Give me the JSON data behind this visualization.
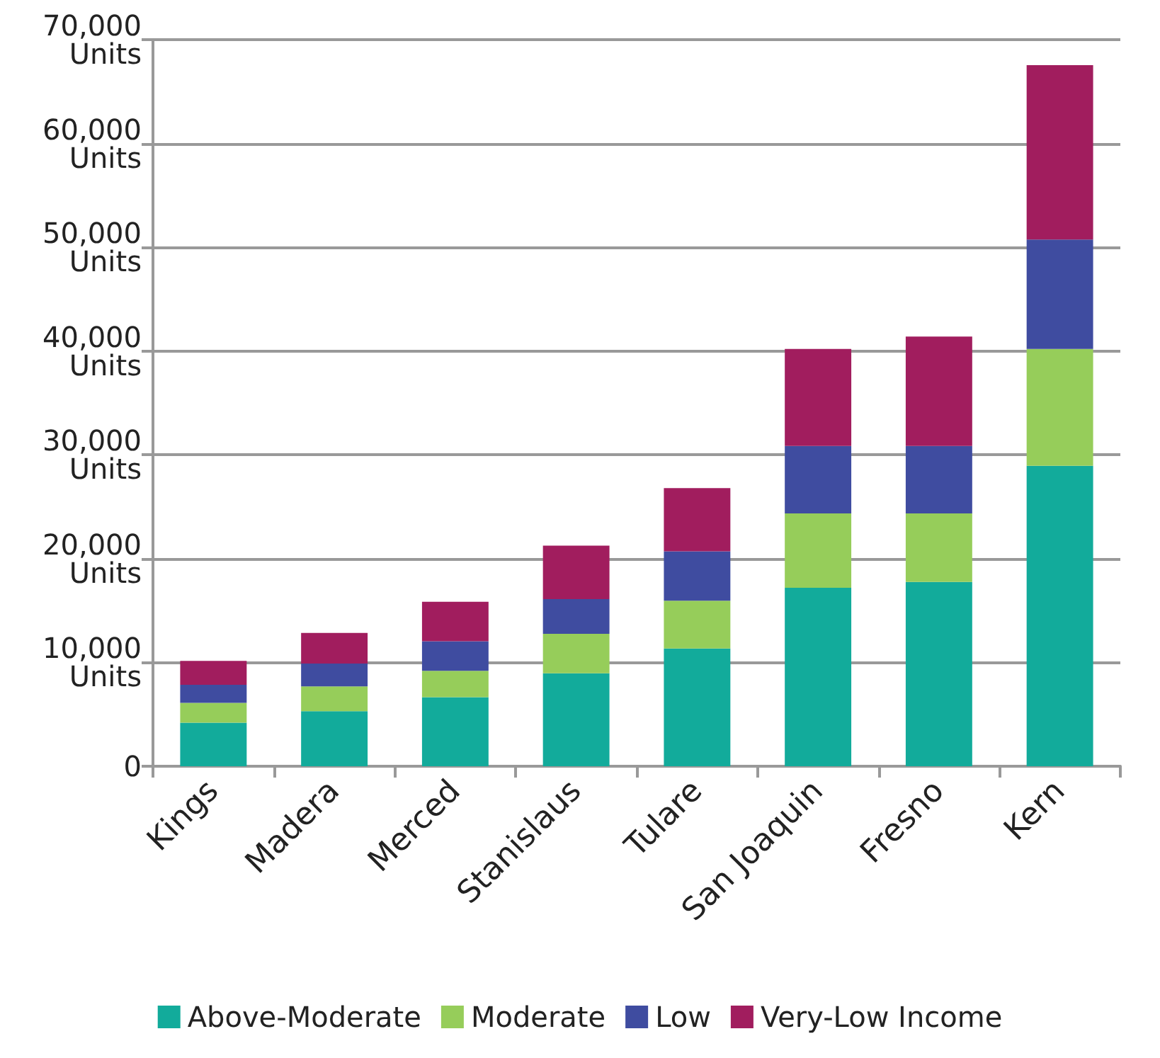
{
  "chart_data": {
    "type": "bar",
    "stacked": true,
    "categories": [
      "Kings",
      "Madera",
      "Merced",
      "Stanislaus",
      "Tulare",
      "San Joaquin",
      "Fresno",
      "Kern"
    ],
    "series": [
      {
        "name": "Above-Moderate",
        "color": "#12ab9b",
        "values": [
          4200,
          5300,
          6650,
          8950,
          11350,
          17200,
          17750,
          28950
        ]
      },
      {
        "name": "Moderate",
        "color": "#96cd5a",
        "values": [
          1900,
          2400,
          2550,
          3800,
          4600,
          7150,
          6600,
          11250
        ]
      },
      {
        "name": "Low",
        "color": "#3f4ca0",
        "values": [
          1750,
          2200,
          2850,
          3350,
          4750,
          6500,
          6500,
          10550
        ]
      },
      {
        "name": "Very-Low Income",
        "color": "#a11d5e",
        "values": [
          2300,
          2950,
          3800,
          5150,
          6100,
          9350,
          10550,
          16800
        ]
      }
    ],
    "ylim": [
      0,
      70000
    ],
    "yticks": [
      0,
      {
        "value": 10000,
        "label": "10,000\nUnits"
      },
      {
        "value": 20000,
        "label": "20,000\nUnits"
      },
      {
        "value": 30000,
        "label": "30,000\nUnits"
      },
      {
        "value": 40000,
        "label": "40,000\nUnits"
      },
      {
        "value": 50000,
        "label": "50,000\nUnits"
      },
      {
        "value": 60000,
        "label": "60,000\nUnits"
      },
      {
        "value": 70000,
        "label": "70,000\nUnits"
      }
    ],
    "grid": "y",
    "legend": "bottom"
  }
}
